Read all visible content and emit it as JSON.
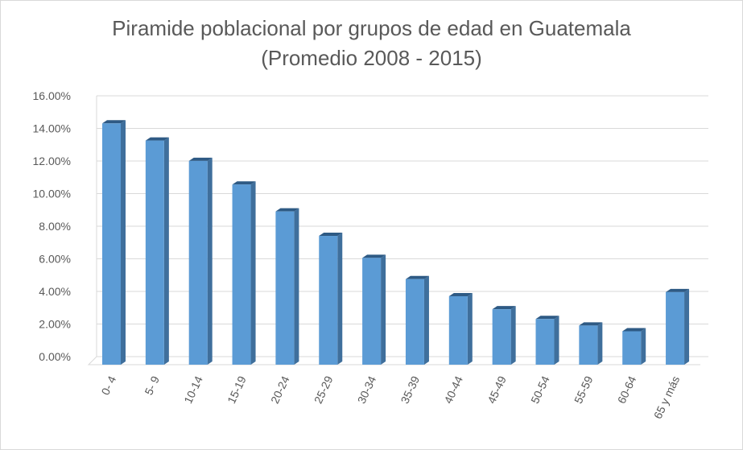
{
  "chart_data": {
    "type": "bar",
    "title_line1": "Piramide poblacional por grupos de edad en Guatemala",
    "title_line2": "(Promedio 2008 - 2015)",
    "categories": [
      "0- 4",
      "5- 9",
      "10-14",
      "15-19",
      "20-24",
      "25-29",
      "30-34",
      "35-39",
      "40-44",
      "45-49",
      "50-54",
      "55-59",
      "60-64",
      "65 y más"
    ],
    "values": [
      14.8,
      13.75,
      12.5,
      11.05,
      9.4,
      7.9,
      6.55,
      5.25,
      4.2,
      3.4,
      2.8,
      2.4,
      2.05,
      4.45
    ],
    "ylim": [
      0,
      16
    ],
    "yticks": [
      "0.00%",
      "2.00%",
      "4.00%",
      "6.00%",
      "8.00%",
      "10.00%",
      "12.00%",
      "14.00%",
      "16.00%"
    ],
    "grid": true,
    "legend": "none",
    "colors": {
      "bar_front": "#5b9bd5",
      "bar_side": "#3f6f9c",
      "bar_top": "#2e5a84",
      "grid": "#d9d9d9"
    }
  }
}
